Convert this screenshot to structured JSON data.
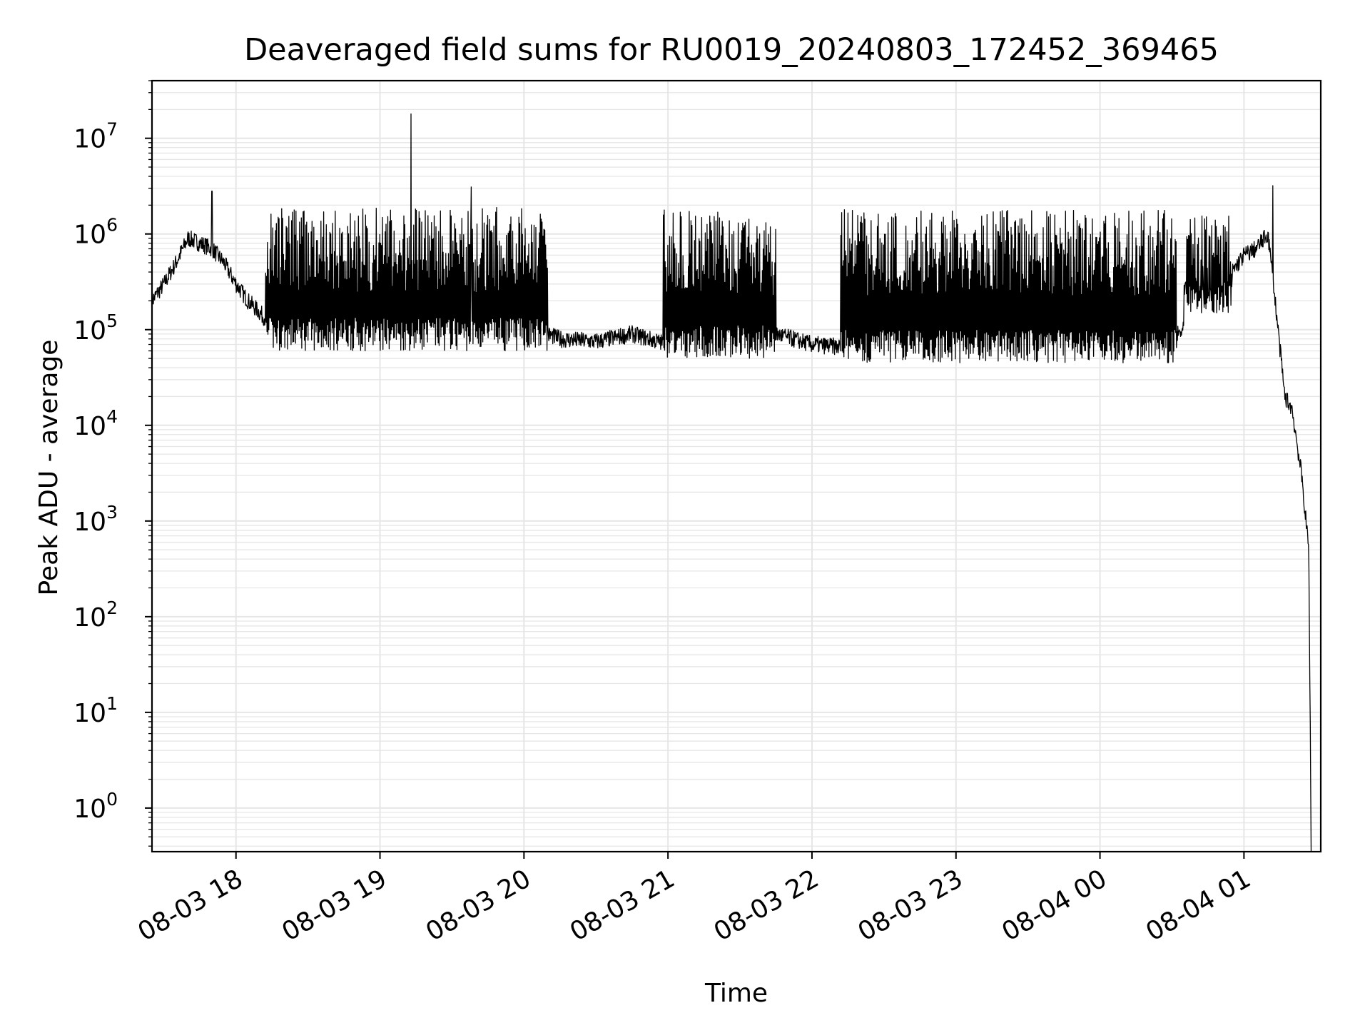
{
  "chart_data": {
    "type": "line",
    "title": "Deaveraged field sums for RU0019_20240803_172452_369465",
    "xlabel": "Time",
    "ylabel": "Peak ADU - average",
    "yscale": "log",
    "xlim": [
      "2024-08-03 17:25",
      "2024-08-04 01:32"
    ],
    "ylim": [
      0.35,
      40000000
    ],
    "grid": true,
    "x_ticks": [
      "08-03 18",
      "08-03 19",
      "08-03 20",
      "08-03 21",
      "08-03 22",
      "08-03 23",
      "08-04 00",
      "08-04 01"
    ],
    "y_ticks": [
      {
        "base": "10",
        "exp": "0",
        "value": 1
      },
      {
        "base": "10",
        "exp": "1",
        "value": 10
      },
      {
        "base": "10",
        "exp": "2",
        "value": 100
      },
      {
        "base": "10",
        "exp": "3",
        "value": 1000
      },
      {
        "base": "10",
        "exp": "4",
        "value": 10000
      },
      {
        "base": "10",
        "exp": "5",
        "value": 100000
      },
      {
        "base": "10",
        "exp": "6",
        "value": 1000000
      },
      {
        "base": "10",
        "exp": "7",
        "value": 10000000
      }
    ],
    "series": [
      {
        "color": "#000000",
        "x": [
          "2024-08-03 17:25",
          "2024-08-03 17:30",
          "2024-08-03 17:35",
          "2024-08-03 17:40",
          "2024-08-03 17:45",
          "2024-08-03 17:50",
          "2024-08-03 17:55",
          "2024-08-03 18:00",
          "2024-08-03 18:05",
          "2024-08-03 18:10",
          "2024-08-03 18:15",
          "2024-08-03 18:20",
          "2024-08-03 18:30",
          "2024-08-03 18:40",
          "2024-08-03 18:50",
          "2024-08-03 19:00",
          "2024-08-03 19:10",
          "2024-08-03 19:20",
          "2024-08-03 19:30",
          "2024-08-03 19:40",
          "2024-08-03 19:50",
          "2024-08-03 20:00",
          "2024-08-03 20:15",
          "2024-08-03 20:30",
          "2024-08-03 20:45",
          "2024-08-03 21:00",
          "2024-08-03 21:15",
          "2024-08-03 21:30",
          "2024-08-03 21:45",
          "2024-08-03 22:00",
          "2024-08-03 22:15",
          "2024-08-03 22:30",
          "2024-08-03 22:45",
          "2024-08-03 23:00",
          "2024-08-03 23:15",
          "2024-08-03 23:30",
          "2024-08-03 23:45",
          "2024-08-04 00:00",
          "2024-08-04 00:15",
          "2024-08-04 00:30",
          "2024-08-04 00:45",
          "2024-08-04 00:55",
          "2024-08-04 01:00",
          "2024-08-04 01:05",
          "2024-08-04 01:10",
          "2024-08-04 01:13",
          "2024-08-04 01:17",
          "2024-08-04 01:20",
          "2024-08-04 01:24",
          "2024-08-04 01:27",
          "2024-08-04 01:28"
        ],
        "values": [
          200000,
          300000,
          500000,
          900000,
          800000,
          700000,
          500000,
          300000,
          200000,
          150000,
          110000,
          100000,
          90000,
          100000,
          120000,
          110000,
          150000,
          100000,
          90000,
          120000,
          200000,
          110000,
          80000,
          75000,
          90000,
          70000,
          85000,
          80000,
          90000,
          70000,
          65000,
          60000,
          70000,
          70000,
          75000,
          70000,
          65000,
          75000,
          70000,
          80000,
          150000,
          400000,
          600000,
          700000,
          1000000,
          200000,
          20000,
          15000,
          3000,
          500,
          0.5
        ]
      }
    ],
    "spikes": [
      {
        "x": "2024-08-03 17:50",
        "y": 2800000
      },
      {
        "x": "2024-08-03 19:13",
        "y": 18000000
      },
      {
        "x": "2024-08-03 19:38",
        "y": 3100000
      },
      {
        "x": "2024-08-04 01:12",
        "y": 3200000
      }
    ],
    "bursts": [
      {
        "from": "2024-08-03 18:12",
        "to": "2024-08-03 20:10",
        "low": 60000,
        "high": 1900000
      },
      {
        "from": "2024-08-03 20:58",
        "to": "2024-08-03 21:45",
        "low": 50000,
        "high": 1800000
      },
      {
        "from": "2024-08-03 22:12",
        "to": "2024-08-04 00:32",
        "low": 45000,
        "high": 1800000
      },
      {
        "from": "2024-08-04 00:35",
        "to": "2024-08-04 00:55",
        "low": 150000,
        "high": 1700000
      }
    ]
  }
}
